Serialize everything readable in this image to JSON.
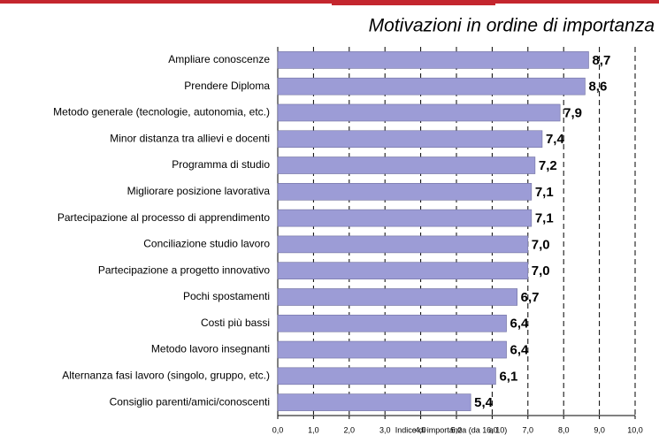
{
  "chart_data": {
    "type": "bar",
    "orientation": "horizontal",
    "title": "Motivazioni in ordine di importanza",
    "x_label": "Indice di importanza (da 1 a 10)",
    "categories": [
      "Ampliare conoscenze",
      "Prendere Diploma",
      "Metodo generale (tecnologie, autonomia, etc.)",
      "Minor distanza tra allievi e docenti",
      "Programma di studio",
      "Migliorare posizione lavorativa",
      "Partecipazione al processo di apprendimento",
      "Conciliazione studio lavoro",
      "Partecipazione a progetto innovativo",
      "Pochi spostamenti",
      "Costi più bassi",
      "Metodo lavoro insegnanti",
      "Alternanza fasi lavoro (singolo, gruppo, etc.)",
      "Consiglio parenti/amici/conoscenti"
    ],
    "values": [
      8.7,
      8.6,
      7.9,
      7.4,
      7.2,
      7.1,
      7.1,
      7.0,
      7.0,
      6.7,
      6.4,
      6.4,
      6.1,
      5.4
    ],
    "value_labels": [
      "8,7",
      "8,6",
      "7,9",
      "7,4",
      "7,2",
      "7,1",
      "7,1",
      "7,0",
      "7,0",
      "6,7",
      "6,4",
      "6,4",
      "6,1",
      "5,4"
    ],
    "color": "#9c9cd6",
    "xlim": [
      0,
      10
    ],
    "xticks": [
      {
        "value": 0,
        "label": "0,0"
      },
      {
        "value": 1,
        "label": "1,0"
      },
      {
        "value": 2,
        "label": "2,0"
      },
      {
        "value": 3,
        "label": "3,0"
      },
      {
        "value": 4,
        "label": "4,0"
      },
      {
        "value": 5,
        "label": "5,0"
      },
      {
        "value": 6,
        "label": "6,0"
      },
      {
        "value": 7,
        "label": "7,0"
      },
      {
        "value": 8,
        "label": "8,0"
      },
      {
        "value": 9,
        "label": "9,0"
      },
      {
        "value": 10,
        "label": "10,0"
      }
    ],
    "grid": true
  }
}
